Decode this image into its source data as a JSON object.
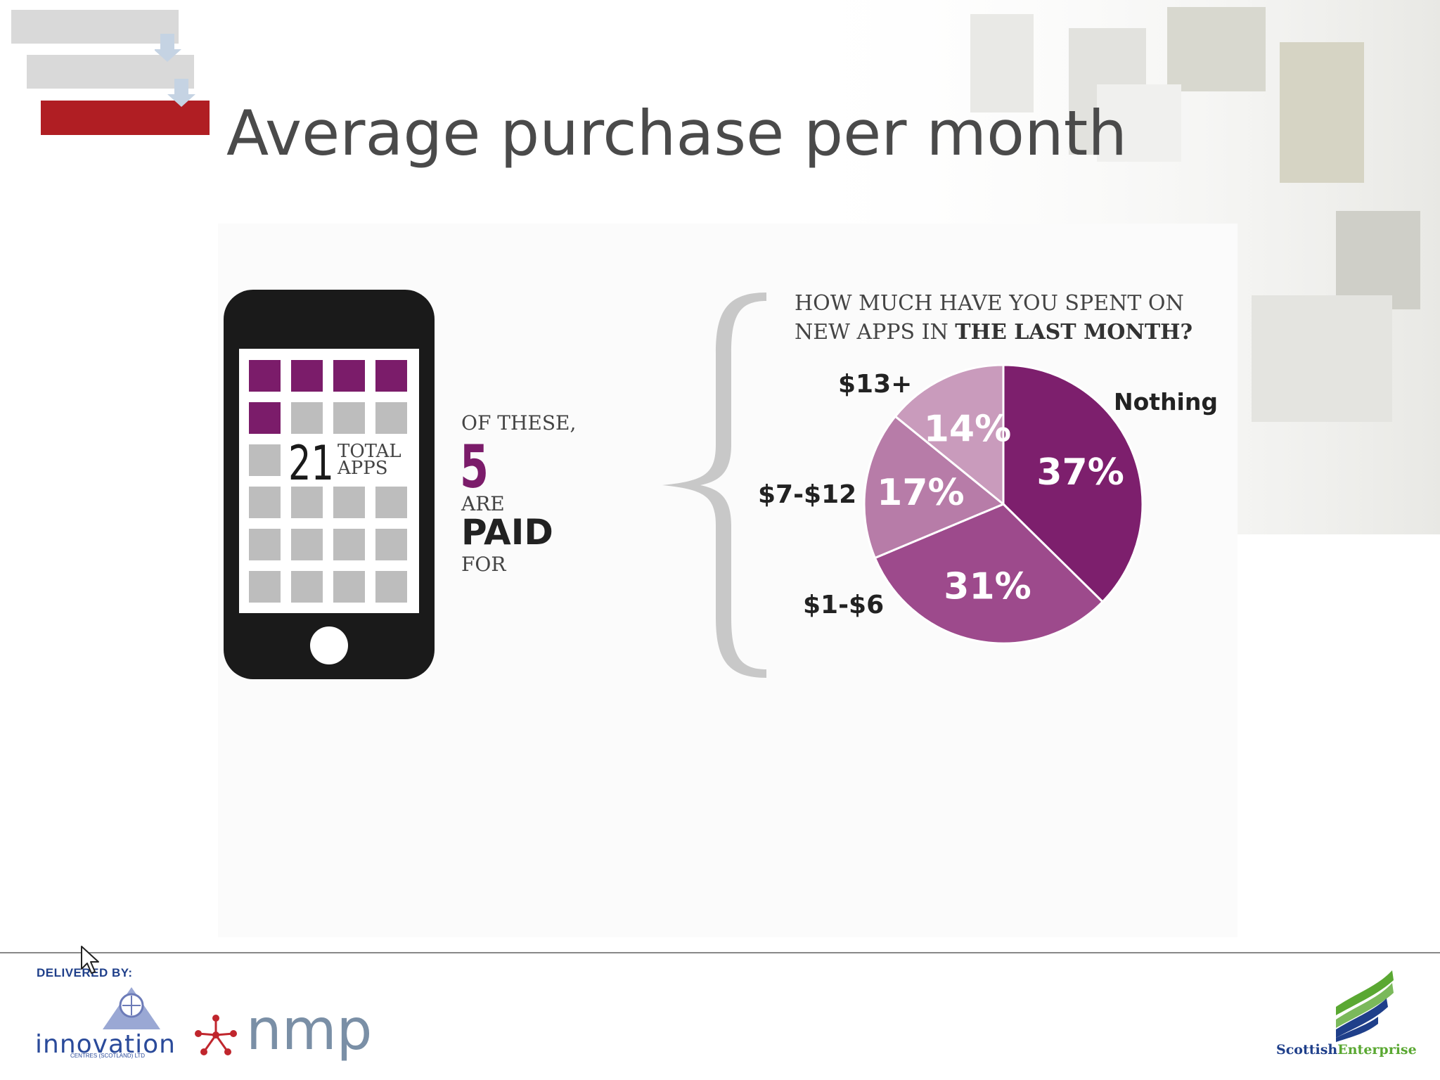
{
  "slide": {
    "title": "Average purchase per month"
  },
  "phone": {
    "total_number": "21",
    "total_label_line1": "TOTAL",
    "total_label_line2": "APPS",
    "of_these": "OF THESE,",
    "paid_number": "5",
    "are": "ARE",
    "paid": "PAID",
    "for": "FOR",
    "paid_color": "#7b1c6a",
    "unpaid_color": "#bdbdbd"
  },
  "question": {
    "line1": "HOW MUCH HAVE YOU SPENT ON",
    "line2_prefix": "NEW APPS IN ",
    "line2_bold": "THE LAST MONTH?"
  },
  "chart_data": {
    "type": "pie",
    "title": "HOW MUCH HAVE YOU SPENT ON NEW APPS IN THE LAST MONTH?",
    "categories": [
      "Nothing",
      "$1-$6",
      "$7-$12",
      "$13+"
    ],
    "values": [
      37,
      31,
      17,
      14
    ],
    "value_labels": [
      "37%",
      "31%",
      "17%",
      "14%"
    ],
    "colors": [
      "#7d1f6d",
      "#9d4a8c",
      "#b77ca8",
      "#c99bbc"
    ],
    "legend": "none"
  },
  "footer": {
    "delivered_by": "DELIVERED BY:",
    "innovation": "innovation",
    "innovation_sub": "CENTRES (SCOTLAND) LTD",
    "nmp": "nmp",
    "scottish": "Scottish",
    "enterprise": "Enterprise"
  },
  "colors": {
    "title": "#4a4a4a",
    "accent_red": "#b01e23"
  }
}
